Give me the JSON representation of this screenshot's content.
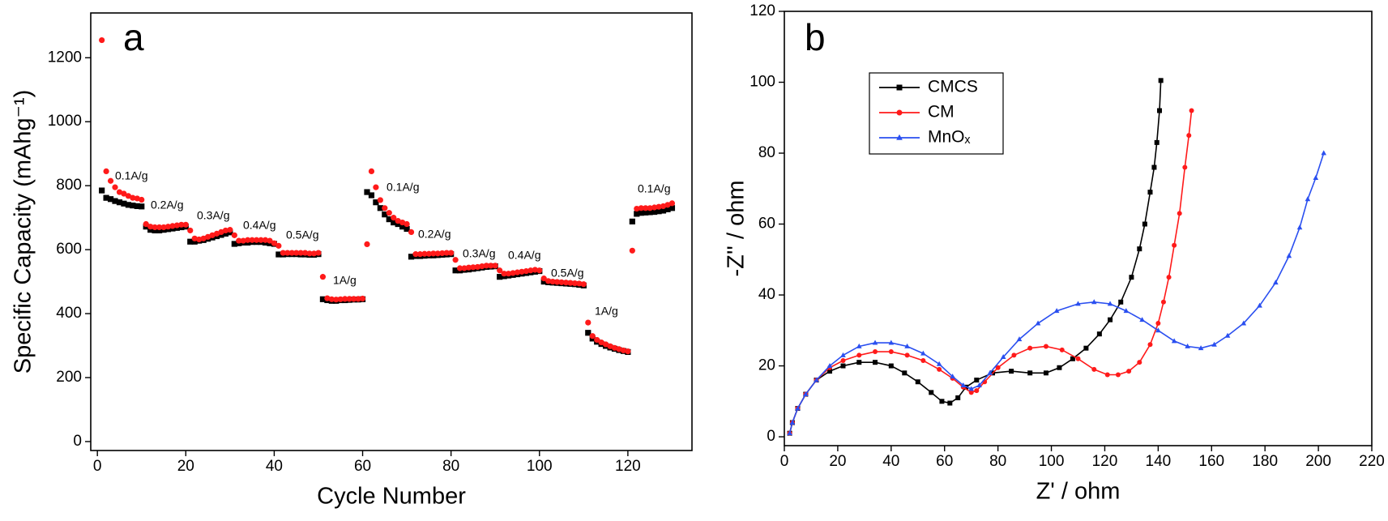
{
  "chart_data": [
    {
      "type": "scatter",
      "panel_label": "a",
      "xlabel": "Cycle Number",
      "ylabel": "Specific Capacity (mAhg⁻¹)",
      "annotations": [
        "0.1A/g",
        "0.2A/g",
        "0.3A/g",
        "0.4A/g",
        "0.5A/g",
        "1A/g",
        "0.1A/g",
        "0.2A/g",
        "0.3A/g",
        "0.4A/g",
        "0.5A/g",
        "1A/g",
        "0.1A/g"
      ],
      "xlim": [
        -1.5,
        134.5
      ],
      "ylim": [
        -28,
        1340
      ],
      "xticks": [
        0,
        20,
        40,
        60,
        80,
        100,
        120
      ],
      "yticks": [
        0,
        200,
        400,
        600,
        800,
        1000,
        1200
      ],
      "x": [
        1,
        2,
        3,
        4,
        5,
        6,
        7,
        8,
        9,
        10,
        11,
        12,
        13,
        14,
        15,
        16,
        17,
        18,
        19,
        20,
        21,
        22,
        23,
        24,
        25,
        26,
        27,
        28,
        29,
        30,
        31,
        32,
        33,
        34,
        35,
        36,
        37,
        38,
        39,
        40,
        41,
        42,
        43,
        44,
        45,
        46,
        47,
        48,
        49,
        50,
        51,
        52,
        53,
        54,
        55,
        56,
        57,
        58,
        59,
        60,
        61,
        62,
        63,
        64,
        65,
        66,
        67,
        68,
        69,
        70,
        71,
        72,
        73,
        74,
        75,
        76,
        77,
        78,
        79,
        80,
        81,
        82,
        83,
        84,
        85,
        86,
        87,
        88,
        89,
        90,
        91,
        92,
        93,
        94,
        95,
        96,
        97,
        98,
        99,
        100,
        101,
        102,
        103,
        104,
        105,
        106,
        107,
        108,
        109,
        110,
        111,
        112,
        113,
        114,
        115,
        116,
        117,
        118,
        119,
        120,
        121,
        122,
        123,
        124,
        125,
        126,
        127,
        128,
        129,
        130
      ],
      "series": [
        {
          "color": "#000000",
          "marker": "square",
          "values": [
            785,
            762,
            758,
            752,
            748,
            744,
            740,
            738,
            736,
            735,
            672,
            662,
            660,
            660,
            662,
            664,
            666,
            668,
            670,
            672,
            625,
            625,
            628,
            630,
            634,
            638,
            642,
            646,
            650,
            654,
            618,
            620,
            622,
            622,
            624,
            624,
            624,
            622,
            620,
            618,
            585,
            585,
            586,
            586,
            586,
            585,
            585,
            584,
            584,
            586,
            445,
            442,
            440,
            440,
            442,
            442,
            443,
            444,
            444,
            445,
            780,
            770,
            748,
            730,
            710,
            695,
            685,
            680,
            672,
            665,
            578,
            580,
            580,
            581,
            582,
            582,
            583,
            584,
            585,
            586,
            535,
            535,
            537,
            538,
            540,
            542,
            544,
            546,
            547,
            548,
            515,
            517,
            519,
            521,
            523,
            525,
            527,
            529,
            531,
            533,
            500,
            498,
            497,
            496,
            495,
            494,
            493,
            492,
            490,
            488,
            340,
            322,
            312,
            305,
            299,
            294,
            290,
            286,
            283,
            280,
            688,
            712,
            715,
            716,
            717,
            718,
            720,
            722,
            726,
            730
          ]
        },
        {
          "color": "#ff1a1a",
          "marker": "circle",
          "values": [
            1255,
            845,
            815,
            795,
            780,
            775,
            768,
            762,
            760,
            756,
            680,
            672,
            670,
            670,
            670,
            672,
            674,
            676,
            678,
            678,
            660,
            635,
            632,
            635,
            640,
            645,
            650,
            655,
            660,
            662,
            645,
            628,
            628,
            630,
            630,
            630,
            630,
            630,
            628,
            620,
            612,
            590,
            590,
            590,
            590,
            590,
            590,
            588,
            588,
            590,
            515,
            448,
            445,
            444,
            445,
            446,
            446,
            446,
            446,
            447,
            617,
            845,
            795,
            755,
            730,
            715,
            700,
            690,
            685,
            680,
            655,
            586,
            586,
            587,
            587,
            588,
            588,
            589,
            590,
            590,
            568,
            542,
            542,
            544,
            545,
            546,
            548,
            550,
            550,
            550,
            535,
            525,
            525,
            527,
            529,
            531,
            533,
            535,
            537,
            535,
            510,
            502,
            500,
            499,
            498,
            497,
            496,
            495,
            494,
            492,
            372,
            330,
            318,
            310,
            304,
            298,
            293,
            289,
            285,
            282,
            597,
            728,
            730,
            730,
            730,
            732,
            734,
            736,
            740,
            745
          ]
        }
      ]
    },
    {
      "type": "line",
      "panel_label": "b",
      "xlabel": "Z' / ohm",
      "ylabel": "-Z'' / ohm",
      "legend": "upper left",
      "xlim": [
        0,
        220
      ],
      "ylim": [
        -2.5,
        120
      ],
      "xticks": [
        0,
        20,
        40,
        60,
        80,
        100,
        120,
        140,
        160,
        180,
        200,
        220
      ],
      "yticks": [
        0,
        20,
        40,
        60,
        80,
        100,
        120
      ],
      "series": [
        {
          "name": "CMCS",
          "color": "#000000",
          "marker": "square",
          "x": [
            2,
            3,
            5,
            8,
            12,
            17,
            22,
            28,
            34,
            40,
            45,
            50,
            55,
            59,
            62,
            65,
            68,
            72,
            78,
            85,
            92,
            98,
            103,
            108,
            113,
            118,
            122,
            126,
            130,
            133,
            135,
            137,
            138.5,
            139.5,
            140.5,
            141
          ],
          "values": [
            1,
            4,
            8,
            12,
            16,
            18.5,
            20,
            21,
            21,
            20,
            18,
            15.5,
            12.5,
            10,
            9.5,
            11,
            14,
            16,
            18,
            18.5,
            18,
            18,
            19.5,
            22,
            25,
            29,
            33,
            38,
            45,
            53,
            60,
            69,
            76,
            83,
            92,
            100.5
          ]
        },
        {
          "name": "CM",
          "color": "#ff1a1a",
          "marker": "circle",
          "x": [
            2,
            3,
            5,
            8,
            12,
            17,
            22,
            28,
            34,
            40,
            46,
            52,
            58,
            63,
            67,
            70,
            72,
            75,
            80,
            86,
            92,
            98,
            104,
            110,
            116,
            121,
            125,
            129,
            133,
            137,
            140,
            142,
            144,
            146,
            148,
            150,
            151.5,
            152.5
          ],
          "values": [
            1,
            4,
            8,
            12,
            16,
            19.5,
            21.5,
            23,
            24,
            24,
            23,
            21.5,
            19,
            16.5,
            14,
            12.5,
            13,
            15.5,
            19.5,
            23,
            25,
            25.5,
            24.5,
            22,
            19,
            17.5,
            17.5,
            18.5,
            21,
            26,
            32,
            38,
            45,
            54,
            63,
            76,
            85,
            92
          ]
        },
        {
          "name": "MnOₓ",
          "color": "#2a4ff0",
          "marker": "triangle",
          "x": [
            2,
            3,
            5,
            8,
            12,
            17,
            22,
            28,
            34,
            40,
            46,
            52,
            58,
            63,
            67,
            70,
            73,
            77,
            82,
            88,
            95,
            102,
            110,
            116,
            122,
            128,
            134,
            140,
            146,
            151,
            156,
            161,
            166,
            172,
            178,
            184,
            189,
            193,
            196,
            199,
            202
          ],
          "values": [
            1,
            4,
            8,
            12,
            16,
            20,
            23,
            25.5,
            26.5,
            26.5,
            25.5,
            23.5,
            20.5,
            17,
            14.5,
            13.5,
            14.5,
            18,
            22.5,
            27.5,
            32,
            35.5,
            37.5,
            38,
            37.5,
            35.5,
            33,
            30,
            27,
            25.5,
            25,
            26,
            28.5,
            32,
            37,
            43.5,
            51,
            59,
            67,
            73,
            80
          ]
        }
      ]
    }
  ]
}
